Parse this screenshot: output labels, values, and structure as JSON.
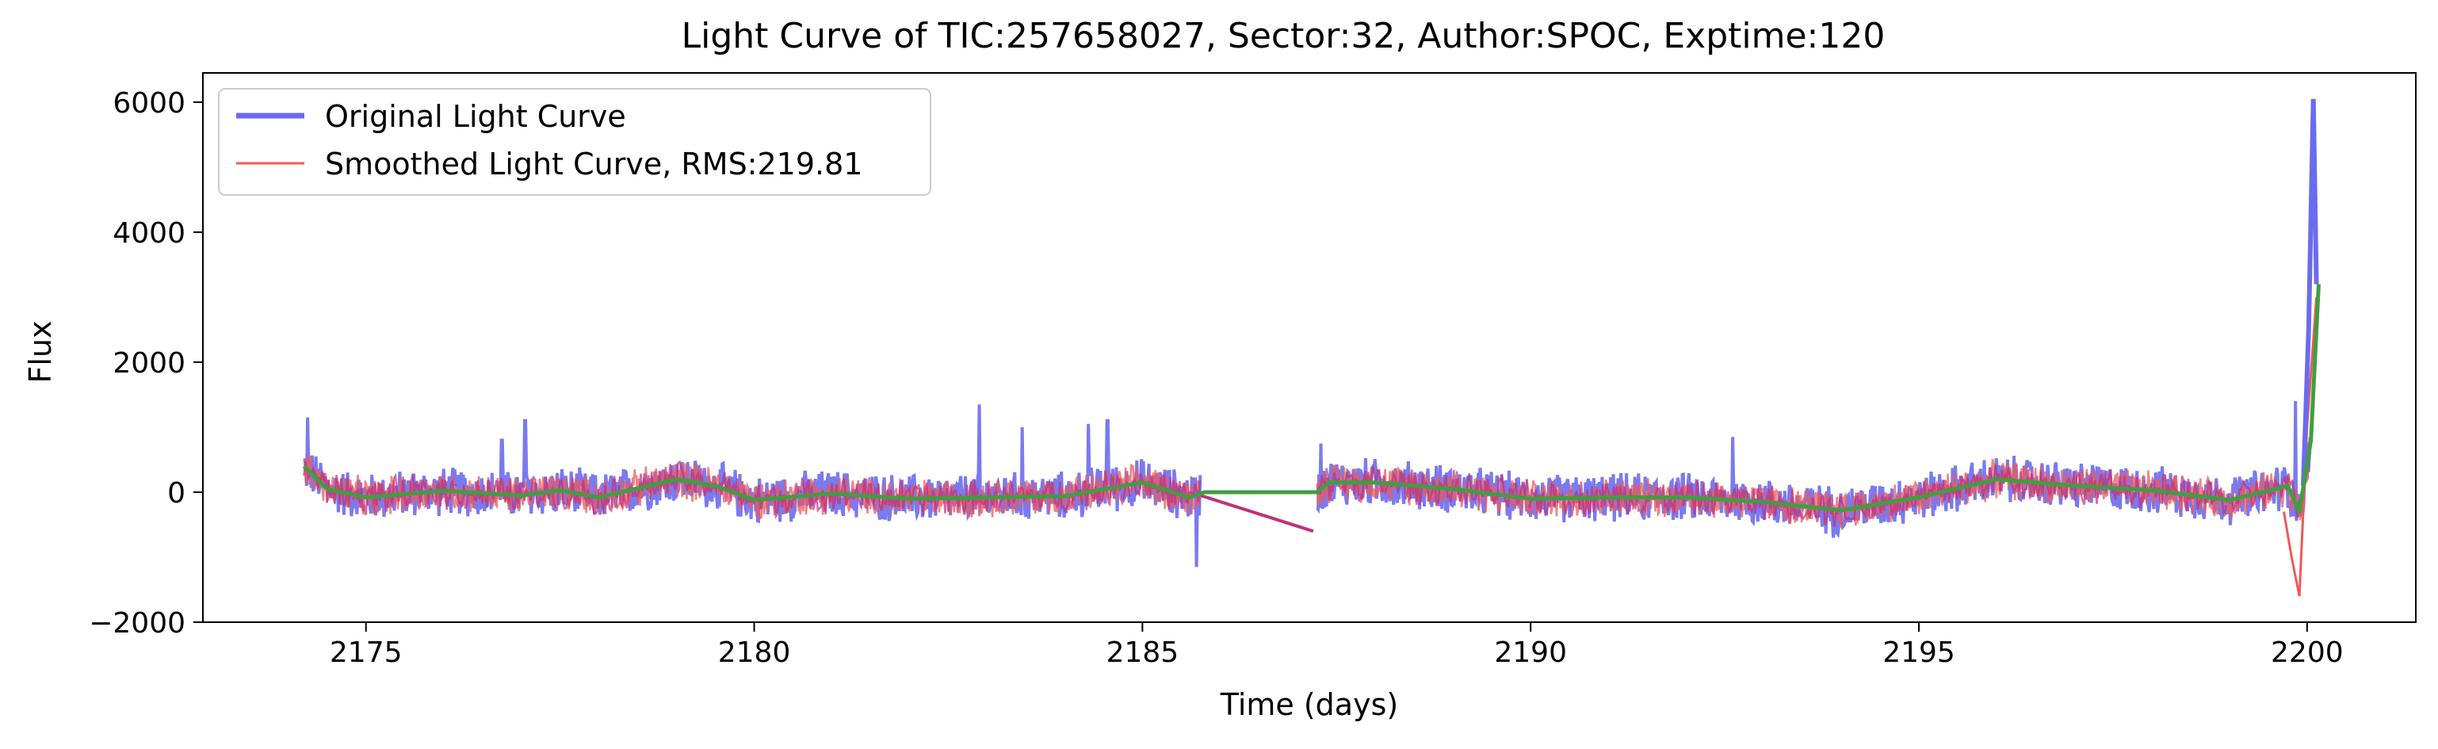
{
  "chart_data": {
    "type": "line",
    "title": "Light Curve of TIC:257658027, Sector:32, Author:SPOC, Exptime:120",
    "xlabel": "Time (days)",
    "ylabel": "Flux",
    "xlim": [
      2172.9,
      2201.4
    ],
    "ylim": [
      -2000,
      6450
    ],
    "xticks": [
      2175,
      2180,
      2185,
      2190,
      2195,
      2200
    ],
    "yticks": [
      -2000,
      0,
      2000,
      4000,
      6000
    ],
    "grid": false,
    "legend": {
      "position": "top-left",
      "entries": [
        "Original Light Curve",
        "Smoothed Light Curve, RMS:219.81"
      ]
    },
    "colors": {
      "original": "#6b6bf0",
      "smoothed": "#ee5a5a",
      "overlap": "#c0307a",
      "trend": "#3f9f3f"
    },
    "series": [
      {
        "name": "Original Light Curve",
        "role": "original",
        "segments": [
          {
            "t_start": 2174.2,
            "t_end": 2185.75,
            "noise_amp": 420,
            "outliers": [
              [
                2174.25,
                1150
              ],
              [
                2176.75,
                800
              ],
              [
                2177.05,
                1100
              ],
              [
                2182.9,
                1350
              ],
              [
                2183.45,
                1000
              ],
              [
                2184.3,
                1050
              ],
              [
                2184.55,
                1100
              ],
              [
                2185.7,
                -1150
              ]
            ]
          },
          {
            "t_start": 2187.25,
            "t_end": 2200.05,
            "noise_amp": 420,
            "outliers": [
              [
                2187.3,
                750
              ],
              [
                2192.6,
                850
              ],
              [
                2193.9,
                -700
              ],
              [
                2199.85,
                1400
              ]
            ]
          }
        ],
        "gap_line": [
          [
            2185.75,
            -50
          ],
          [
            2187.2,
            -600
          ]
        ],
        "flare": [
          [
            2199.95,
            100
          ],
          [
            2200.02,
            2500
          ],
          [
            2200.08,
            6050
          ],
          [
            2200.12,
            3200
          ]
        ]
      },
      {
        "name": "Smoothed Light Curve, RMS:219.81",
        "role": "smoothed",
        "segments": [
          {
            "t_start": 2174.2,
            "t_end": 2185.75,
            "noise_amp": 330
          },
          {
            "t_start": 2187.25,
            "t_end": 2200.05,
            "noise_amp": 330
          }
        ],
        "dip": [
          [
            2199.7,
            -300
          ],
          [
            2199.8,
            -1000
          ],
          [
            2199.9,
            -1600
          ],
          [
            2200.0,
            1000
          ],
          [
            2200.12,
            3000
          ]
        ]
      },
      {
        "role": "trend",
        "x": [
          2174.2,
          2174.5,
          2175.0,
          2176.0,
          2177.0,
          2177.5,
          2178.0,
          2179.0,
          2179.5,
          2180.0,
          2181.0,
          2182.0,
          2183.0,
          2184.0,
          2185.0,
          2185.6,
          2185.8,
          2187.25,
          2187.4,
          2188.0,
          2189.0,
          2190.0,
          2191.0,
          2192.0,
          2193.0,
          2194.0,
          2195.0,
          2196.0,
          2197.0,
          2198.0,
          2199.0,
          2199.5,
          2199.75,
          2199.9,
          2200.05,
          2200.15
        ],
        "y": [
          400,
          50,
          -80,
          20,
          -50,
          30,
          -80,
          200,
          100,
          -120,
          -20,
          -100,
          -80,
          -60,
          150,
          -80,
          0,
          0,
          150,
          150,
          50,
          -100,
          -80,
          -80,
          -150,
          -280,
          -80,
          200,
          100,
          30,
          -120,
          20,
          100,
          -300,
          800,
          3200
        ]
      }
    ]
  }
}
